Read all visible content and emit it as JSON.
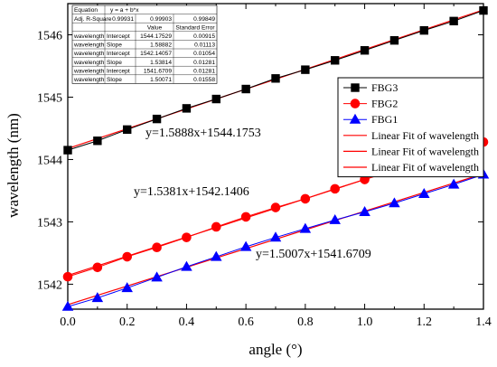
{
  "chart_data": {
    "type": "line",
    "xlabel": "angle (°)",
    "ylabel": "wavelength (nm)",
    "xlim": [
      0.0,
      1.4
    ],
    "ylim": [
      1541.6,
      1546.5
    ],
    "xticks": [
      "0.0",
      "0.2",
      "0.4",
      "0.6",
      "0.8",
      "1.0",
      "1.2",
      "1.4"
    ],
    "yticks": [
      "1542",
      "1543",
      "1544",
      "1545",
      "1546"
    ],
    "grid": false,
    "legend_position": "right",
    "x": [
      0.0,
      0.1,
      0.2,
      0.3,
      0.4,
      0.5,
      0.6,
      0.7,
      0.8,
      0.9,
      1.0,
      1.1,
      1.2,
      1.3,
      1.4
    ],
    "series": [
      {
        "name": "FBG3",
        "marker": "square",
        "color": "#000000",
        "values": [
          1544.15,
          1544.3,
          1544.48,
          1544.65,
          1544.82,
          1544.97,
          1545.13,
          1545.3,
          1545.44,
          1545.59,
          1545.75,
          1545.91,
          1546.07,
          1546.22,
          1546.39
        ]
      },
      {
        "name": "FBG2",
        "marker": "circle",
        "color": "#ff0000",
        "values": [
          1542.12,
          1542.27,
          1542.44,
          1542.59,
          1542.75,
          1542.92,
          1543.08,
          1543.23,
          1543.37,
          1543.53,
          1543.68,
          1543.83,
          1543.98,
          1544.13,
          1544.28
        ]
      },
      {
        "name": "FBG1",
        "marker": "triangle",
        "color": "#0000ff",
        "values": [
          1541.64,
          1541.78,
          1541.94,
          1542.11,
          1542.28,
          1542.44,
          1542.6,
          1542.75,
          1542.89,
          1543.03,
          1543.16,
          1543.3,
          1543.45,
          1543.6,
          1543.76
        ]
      }
    ],
    "fits": [
      {
        "name": "Linear Fit of wavelength",
        "color": "#ff0000",
        "slope": 1.58882,
        "intercept": 1544.17529
      },
      {
        "name": "Linear Fit of wavelength",
        "color": "#ff0000",
        "slope": 1.53814,
        "intercept": 1542.14057
      },
      {
        "name": "Linear Fit of wavelength",
        "color": "#ff0000",
        "slope": 1.50071,
        "intercept": 1541.6709
      }
    ],
    "legend": [
      "FBG3",
      "FBG2",
      "FBG1",
      "Linear Fit of wavelength",
      "Linear Fit of wavelength",
      "Linear Fit of wavelength"
    ],
    "annotations": [
      "y=1.5888x+1544.1753",
      "y=1.5381x+1542.1406",
      "y=1.5007x+1541.6709"
    ],
    "stats_table": {
      "header": [
        [
          "Equation",
          "y = a + b*x",
          "",
          ""
        ],
        [
          "Adj. R-Square",
          "0.99931",
          "0.99903",
          "0.99849"
        ],
        [
          "",
          "",
          "Value",
          "Standard Error"
        ]
      ],
      "rows": [
        [
          "wavelength",
          "Intercept",
          "1544.17529",
          "0.00915"
        ],
        [
          "wavelength",
          "Slope",
          "1.58882",
          "0.01113"
        ],
        [
          "wavelength",
          "Intercept",
          "1542.14057",
          "0.01054"
        ],
        [
          "wavelength",
          "Slope",
          "1.53814",
          "0.01281"
        ],
        [
          "wavelength",
          "Intercept",
          "1541.6709",
          "0.01281"
        ],
        [
          "wavelength",
          "Slope",
          "1.50071",
          "0.01558"
        ]
      ]
    }
  }
}
